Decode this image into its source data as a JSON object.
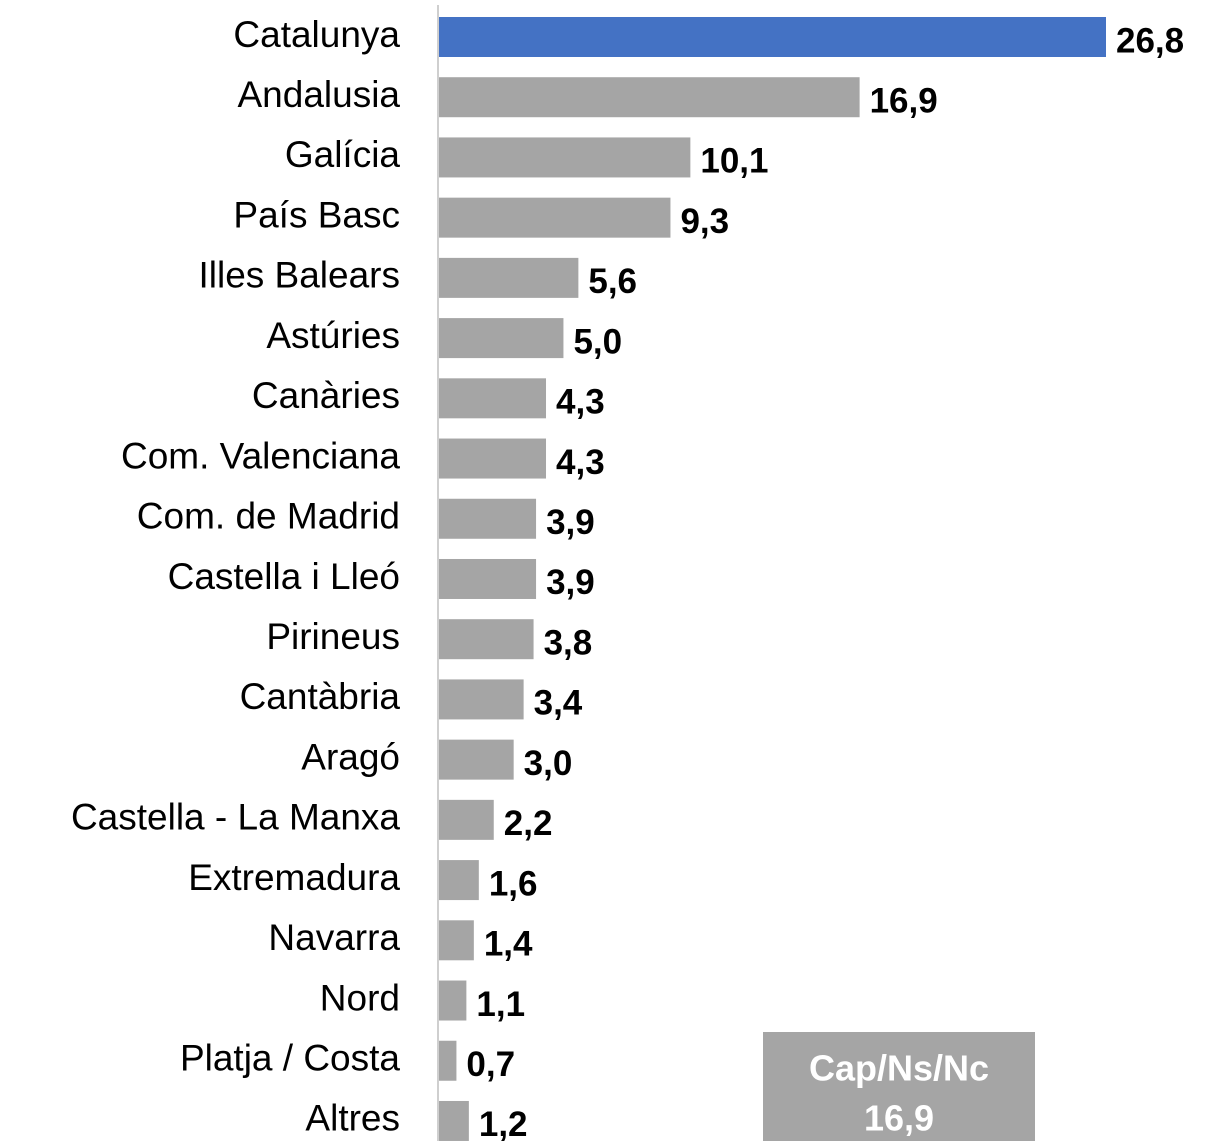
{
  "chart_data": {
    "type": "bar",
    "orientation": "horizontal",
    "categories": [
      "Catalunya",
      "Andalusia",
      "Galícia",
      "País Basc",
      "Illes Balears",
      "Astúries",
      "Canàries",
      "Com. Valenciana",
      "Com. de Madrid",
      "Castella i Lleó",
      "Pirineus",
      "Cantàbria",
      "Aragó",
      "Castella - La Manxa",
      "Extremadura",
      "Navarra",
      "Nord",
      "Platja / Costa",
      "Altres"
    ],
    "values": [
      26.8,
      16.9,
      10.1,
      9.3,
      5.6,
      5.0,
      4.3,
      4.3,
      3.9,
      3.9,
      3.8,
      3.4,
      3.0,
      2.2,
      1.6,
      1.4,
      1.1,
      0.7,
      1.2
    ],
    "value_labels": [
      "26,8",
      "16,9",
      "10,1",
      "9,3",
      "5,6",
      "5,0",
      "4,3",
      "4,3",
      "3,9",
      "3,9",
      "3,8",
      "3,4",
      "3,0",
      "2,2",
      "1,6",
      "1,4",
      "1,1",
      "0,7",
      "1,2"
    ],
    "colors": [
      "#4472c4",
      "#a5a5a5",
      "#a5a5a5",
      "#a5a5a5",
      "#a5a5a5",
      "#a5a5a5",
      "#a5a5a5",
      "#a5a5a5",
      "#a5a5a5",
      "#a5a5a5",
      "#a5a5a5",
      "#a5a5a5",
      "#a5a5a5",
      "#a5a5a5",
      "#a5a5a5",
      "#a5a5a5",
      "#a5a5a5",
      "#a5a5a5",
      "#a5a5a5"
    ],
    "xlim": [
      0,
      26.8
    ],
    "annotation": [
      "Cap/Ns/Nc",
      "16,9"
    ]
  }
}
